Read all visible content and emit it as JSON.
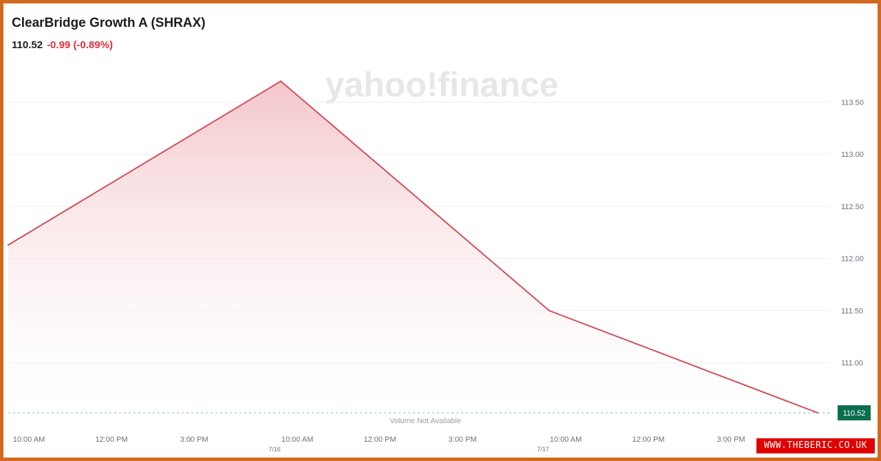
{
  "header": {
    "title": "ClearBridge Growth A (SHRAX)",
    "price": "110.52",
    "change": "-0.99 (-0.89%)"
  },
  "watermark": {
    "text": "yahoo!finance"
  },
  "volume_note": "Volume Not Available",
  "current_price_tag": "110.52",
  "credit": "WWW.THEBERIC.CO.UK",
  "colors": {
    "line": "#d0505b",
    "fill": "#f3c3c8",
    "badge": "#0b6e4f",
    "frame": "#d2691e",
    "credit_bg": "#e00000"
  },
  "chart_data": {
    "type": "area",
    "title": "",
    "xlabel": "",
    "ylabel": "",
    "ylim": [
      110.5,
      113.65
    ],
    "y_ticks": [
      {
        "value": 111.0,
        "label": "111.00"
      },
      {
        "value": 111.5,
        "label": "111.50"
      },
      {
        "value": 112.0,
        "label": "112.00"
      },
      {
        "value": 112.5,
        "label": "112.50"
      },
      {
        "value": 113.0,
        "label": "113.00"
      },
      {
        "value": 113.5,
        "label": "113.50"
      }
    ],
    "x_ticks": [
      {
        "t": 0.5,
        "label": "10:00 AM"
      },
      {
        "t": 2.5,
        "label": "12:00 PM"
      },
      {
        "t": 4.5,
        "label": "3:00 PM"
      },
      {
        "t": 7.0,
        "label": "10:00 AM",
        "sub": "7/16"
      },
      {
        "t": 9.0,
        "label": "12:00 PM"
      },
      {
        "t": 11.0,
        "label": "3:00 PM"
      },
      {
        "t": 13.5,
        "label": "10:00 AM",
        "sub": "7/17"
      },
      {
        "t": 15.5,
        "label": "12:00 PM"
      },
      {
        "t": 17.5,
        "label": "3:00 PM"
      }
    ],
    "x_range": [
      0.0,
      19.8
    ],
    "series": [
      {
        "points": [
          {
            "t": 0.0,
            "y": 112.13
          },
          {
            "t": 6.6,
            "y": 113.7
          },
          {
            "t": 13.1,
            "y": 111.5
          },
          {
            "t": 19.6,
            "y": 110.52
          }
        ]
      }
    ],
    "reference_line": 110.52,
    "grid": true,
    "legend": "none"
  }
}
